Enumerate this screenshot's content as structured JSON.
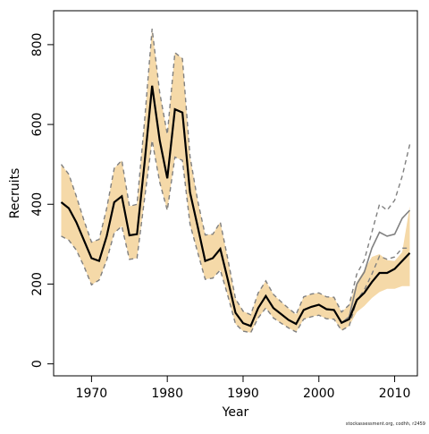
{
  "chart_data": {
    "type": "line",
    "xlabel": "Year",
    "ylabel": "Recruits",
    "xlim": [
      1965,
      2013
    ],
    "ylim": [
      -30,
      885
    ],
    "xticks": [
      1970,
      1980,
      1990,
      2000,
      2010
    ],
    "yticks": [
      0,
      200,
      400,
      600,
      800
    ],
    "grid": false,
    "colors": {
      "band": "#f5d9a8",
      "line": "#000000",
      "dashed": "#808080"
    },
    "x": [
      1966,
      1967,
      1968,
      1969,
      1970,
      1971,
      1972,
      1973,
      1974,
      1975,
      1976,
      1977,
      1978,
      1979,
      1980,
      1981,
      1982,
      1983,
      1984,
      1985,
      1986,
      1987,
      1988,
      1989,
      1990,
      1991,
      1992,
      1993,
      1994,
      1995,
      1996,
      1997,
      1998,
      1999,
      2000,
      2001,
      2002,
      2003,
      2004,
      2005,
      2006,
      2007,
      2008,
      2009,
      2010,
      2011,
      2012
    ],
    "series": [
      {
        "role": "estimate",
        "values": [
          405,
          390,
          355,
          310,
          265,
          258,
          320,
          405,
          420,
          322,
          325,
          505,
          697,
          560,
          465,
          638,
          630,
          430,
          345,
          258,
          265,
          288,
          210,
          128,
          102,
          95,
          140,
          170,
          140,
          125,
          110,
          100,
          135,
          143,
          148,
          137,
          135,
          103,
          112,
          160,
          178,
          205,
          228,
          228,
          238,
          258,
          278
        ]
      },
      {
        "role": "old-estimate",
        "values": [
          405,
          390,
          355,
          310,
          265,
          258,
          320,
          405,
          420,
          322,
          325,
          505,
          697,
          560,
          465,
          638,
          630,
          430,
          345,
          258,
          265,
          288,
          210,
          128,
          102,
          95,
          140,
          170,
          140,
          125,
          110,
          100,
          135,
          143,
          148,
          137,
          135,
          103,
          118,
          200,
          230,
          290,
          330,
          320,
          325,
          365,
          385
        ]
      },
      {
        "role": "band-upper",
        "values": [
          500,
          475,
          420,
          360,
          305,
          312,
          390,
          490,
          510,
          395,
          400,
          610,
          840,
          680,
          575,
          780,
          765,
          520,
          410,
          323,
          325,
          355,
          262,
          163,
          132,
          123,
          178,
          208,
          174,
          156,
          139,
          124,
          168,
          175,
          178,
          168,
          167,
          130,
          148,
          205,
          235,
          268,
          275,
          260,
          258,
          280,
          395
        ]
      },
      {
        "role": "band-lower",
        "values": [
          320,
          310,
          285,
          245,
          198,
          210,
          260,
          328,
          345,
          262,
          265,
          415,
          560,
          455,
          385,
          518,
          510,
          350,
          280,
          212,
          215,
          235,
          170,
          100,
          82,
          78,
          115,
          140,
          115,
          102,
          90,
          80,
          112,
          118,
          122,
          113,
          112,
          84,
          95,
          130,
          145,
          165,
          180,
          188,
          188,
          195,
          195
        ]
      },
      {
        "role": "old-upper-dashed",
        "values": [
          500,
          475,
          420,
          360,
          305,
          312,
          390,
          490,
          510,
          395,
          400,
          610,
          840,
          680,
          575,
          780,
          765,
          520,
          410,
          323,
          325,
          355,
          262,
          163,
          132,
          123,
          178,
          208,
          174,
          156,
          139,
          124,
          168,
          175,
          178,
          168,
          167,
          130,
          148,
          225,
          260,
          330,
          400,
          385,
          410,
          470,
          550
        ]
      },
      {
        "role": "old-lower-dashed",
        "values": [
          320,
          310,
          285,
          245,
          198,
          210,
          260,
          328,
          345,
          262,
          265,
          415,
          560,
          455,
          385,
          518,
          510,
          350,
          280,
          212,
          215,
          235,
          170,
          100,
          82,
          78,
          115,
          140,
          115,
          102,
          90,
          80,
          112,
          118,
          122,
          113,
          112,
          84,
          95,
          160,
          185,
          225,
          270,
          262,
          268,
          290,
          290
        ]
      }
    ]
  },
  "footer": {
    "credit": "stockassessment.org, codhh, r2459"
  }
}
